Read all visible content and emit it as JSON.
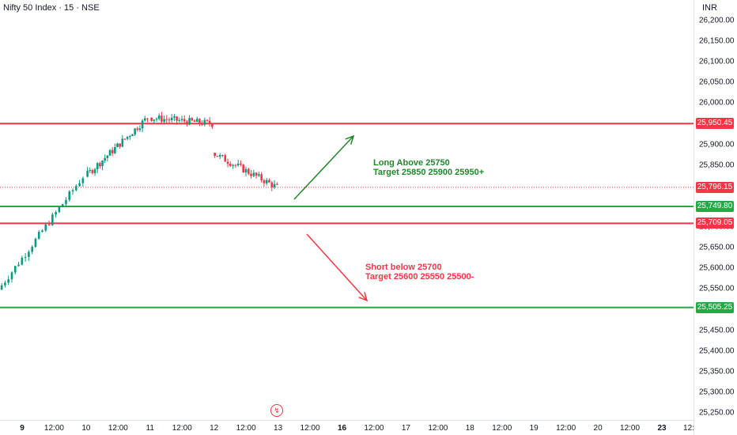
{
  "header": {
    "title": "Nifty 50 Index · 15 · NSE",
    "currency": "INR"
  },
  "y_axis": {
    "min": 25240,
    "max": 26230,
    "ticks": [
      "26,200.00",
      "26,150.00",
      "26,100.00",
      "26,050.00",
      "26,000.00",
      "25,950.00",
      "25,900.00",
      "25,850.00",
      "25,800.00",
      "25,750.00",
      "25,700.00",
      "25,650.00",
      "25,600.00",
      "25,550.00",
      "25,500.00",
      "25,450.00",
      "25,400.00",
      "25,350.00",
      "25,300.00",
      "25,250.00"
    ],
    "tick_values": [
      26200,
      26150,
      26100,
      26050,
      26000,
      25950,
      25900,
      25850,
      25800,
      25750,
      25700,
      25650,
      25600,
      25550,
      25500,
      25450,
      25400,
      25350,
      25300,
      25250
    ]
  },
  "x_axis": {
    "labels": [
      {
        "text": "9",
        "bold": true
      },
      {
        "text": "12:00",
        "bold": false
      },
      {
        "text": "10",
        "bold": false
      },
      {
        "text": "12:00",
        "bold": false
      },
      {
        "text": "11",
        "bold": false
      },
      {
        "text": "12:00",
        "bold": false
      },
      {
        "text": "12",
        "bold": false
      },
      {
        "text": "12:00",
        "bold": false
      },
      {
        "text": "13",
        "bold": false
      },
      {
        "text": "12:00",
        "bold": false
      },
      {
        "text": "16",
        "bold": true
      },
      {
        "text": "12:00",
        "bold": false
      },
      {
        "text": "17",
        "bold": false
      },
      {
        "text": "12:00",
        "bold": false
      },
      {
        "text": "18",
        "bold": false
      },
      {
        "text": "12:00",
        "bold": false
      },
      {
        "text": "19",
        "bold": false
      },
      {
        "text": "12:00",
        "bold": false
      },
      {
        "text": "20",
        "bold": false
      },
      {
        "text": "12:00",
        "bold": false
      },
      {
        "text": "23",
        "bold": true
      },
      {
        "text": "12:",
        "bold": false
      }
    ]
  },
  "levels": [
    {
      "value": 25950.45,
      "label": "25,950.45",
      "color": "#f23645"
    },
    {
      "value": 25749.8,
      "label": "25,749.80",
      "color": "#22ab45"
    },
    {
      "value": 25709.05,
      "label": "25,709.05",
      "color": "#f23645"
    },
    {
      "value": 25505.25,
      "label": "25,505.25",
      "color": "#22ab45"
    }
  ],
  "last_price": {
    "value": 25796.15,
    "label": "25,796.15",
    "color": "#f23645"
  },
  "annotations": {
    "long": {
      "line1": "Long Above 25750",
      "line2": "Target 25850 25900 25950+",
      "color": "#22862a"
    },
    "short": {
      "line1": "Short below 25700",
      "line2": "Target 25600 25550 25500-",
      "color": "#f23645"
    }
  },
  "colors": {
    "up": "#089981",
    "down": "#f23645",
    "grid": "#f0f3fa"
  },
  "chart_data": {
    "type": "candlestick",
    "symbol": "Nifty 50 Index",
    "interval": "15",
    "exchange": "NSE",
    "sessions": [
      {
        "day": "9",
        "open": 25548,
        "high": 25822,
        "low": 25548,
        "close": 25822
      },
      {
        "day": "10",
        "open": 25822,
        "high": 25985,
        "low": 25820,
        "close": 25965
      },
      {
        "day": "11",
        "open": 25965,
        "high": 26010,
        "low": 25905,
        "close": 25950
      },
      {
        "day": "12",
        "open": 25880,
        "high": 25880,
        "low": 25750,
        "close": 25796
      }
    ]
  }
}
